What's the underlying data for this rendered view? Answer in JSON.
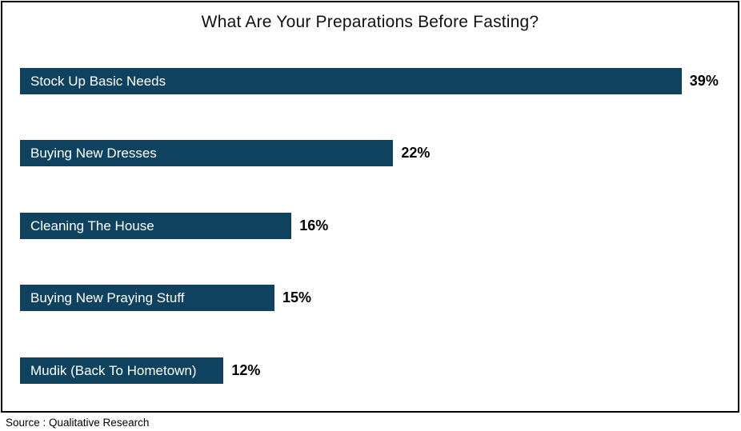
{
  "chart_data": {
    "type": "bar",
    "orientation": "horizontal",
    "title": "What Are Your Preparations Before Fasting?",
    "categories": [
      "Stock Up Basic Needs",
      "Buying New Dresses",
      "Cleaning The House",
      "Buying New Praying Stuff",
      "Mudik (Back To Hometown)"
    ],
    "values": [
      39,
      22,
      16,
      15,
      12
    ],
    "value_labels": [
      "39%",
      "22%",
      "16%",
      "15%",
      "12%"
    ],
    "unit": "%",
    "xlim": [
      0,
      40
    ],
    "grid": false,
    "legend": false,
    "bar_color": "#0e425f",
    "bar_label_color": "#ffffff",
    "value_label_color": "#000000",
    "source_note": "Source : Qualitative Research"
  }
}
